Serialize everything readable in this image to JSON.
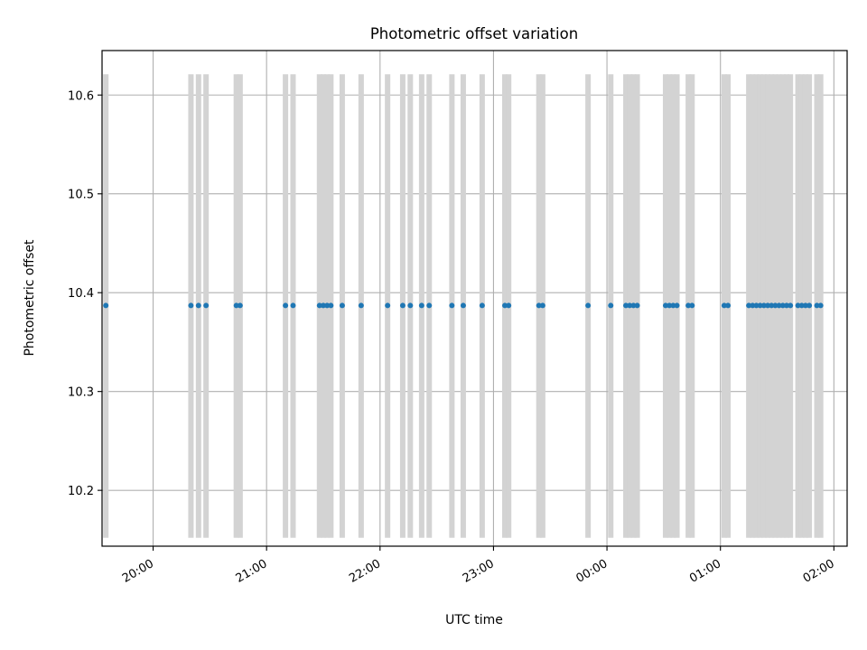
{
  "chart_data": {
    "type": "scatter",
    "title": "Photometric offset variation",
    "xlabel": "UTC time",
    "ylabel": "Photometric offset",
    "x_axis_kind": "time",
    "xlim": [
      "19:33",
      "02:07"
    ],
    "ylim": [
      10.1435,
      10.645
    ],
    "x_ticks": [
      "20:00",
      "21:00",
      "22:00",
      "23:00",
      "00:00",
      "01:00",
      "02:00"
    ],
    "y_ticks": [
      "10.2",
      "10.3",
      "10.4",
      "10.5",
      "10.6"
    ],
    "grid": true,
    "band_range": [
      10.152,
      10.621
    ],
    "band_times": [
      "19:35",
      "20:20",
      "20:24",
      "20:28",
      "20:44",
      "20:46",
      "21:10",
      "21:14",
      "21:28",
      "21:30",
      "21:32",
      "21:34",
      "21:40",
      "21:50",
      "22:04",
      "22:12",
      "22:16",
      "22:22",
      "22:26",
      "22:38",
      "22:44",
      "22:54",
      "23:06",
      "23:08",
      "23:24",
      "23:26",
      "23:50",
      "24:02",
      "24:10",
      "24:12",
      "24:14",
      "24:16",
      "24:31",
      "24:33",
      "24:35",
      "24:37",
      "24:43",
      "24:45",
      "25:02",
      "25:04",
      "25:15",
      "25:17",
      "25:19",
      "25:21",
      "25:23",
      "25:25",
      "25:27",
      "25:29",
      "25:31",
      "25:33",
      "25:35",
      "25:37",
      "25:41",
      "25:43",
      "25:45",
      "25:47",
      "25:51",
      "25:53"
    ],
    "band_color": "#d3d3d3",
    "series": [
      {
        "color": "#1f77b4",
        "x": [
          "19:35",
          "20:20",
          "20:24",
          "20:28",
          "20:44",
          "20:46",
          "21:10",
          "21:14",
          "21:28",
          "21:30",
          "21:32",
          "21:34",
          "21:40",
          "21:50",
          "22:04",
          "22:12",
          "22:16",
          "22:22",
          "22:26",
          "22:38",
          "22:44",
          "22:54",
          "23:06",
          "23:08",
          "23:24",
          "23:26",
          "23:50",
          "24:02",
          "24:10",
          "24:12",
          "24:14",
          "24:16",
          "24:31",
          "24:33",
          "24:35",
          "24:37",
          "24:43",
          "24:45",
          "25:02",
          "25:04",
          "25:15",
          "25:17",
          "25:19",
          "25:21",
          "25:23",
          "25:25",
          "25:27",
          "25:29",
          "25:31",
          "25:33",
          "25:35",
          "25:37",
          "25:41",
          "25:43",
          "25:45",
          "25:47",
          "25:51",
          "25:53"
        ],
        "y": [
          10.387,
          10.387,
          10.387,
          10.387,
          10.387,
          10.387,
          10.387,
          10.387,
          10.387,
          10.387,
          10.387,
          10.387,
          10.387,
          10.387,
          10.387,
          10.387,
          10.387,
          10.387,
          10.387,
          10.387,
          10.387,
          10.387,
          10.387,
          10.387,
          10.387,
          10.387,
          10.387,
          10.387,
          10.387,
          10.387,
          10.387,
          10.387,
          10.387,
          10.387,
          10.387,
          10.387,
          10.387,
          10.387,
          10.387,
          10.387,
          10.387,
          10.387,
          10.387,
          10.387,
          10.387,
          10.387,
          10.387,
          10.387,
          10.387,
          10.387,
          10.387,
          10.387,
          10.387,
          10.387,
          10.387,
          10.387,
          10.387,
          10.387
        ]
      }
    ]
  }
}
